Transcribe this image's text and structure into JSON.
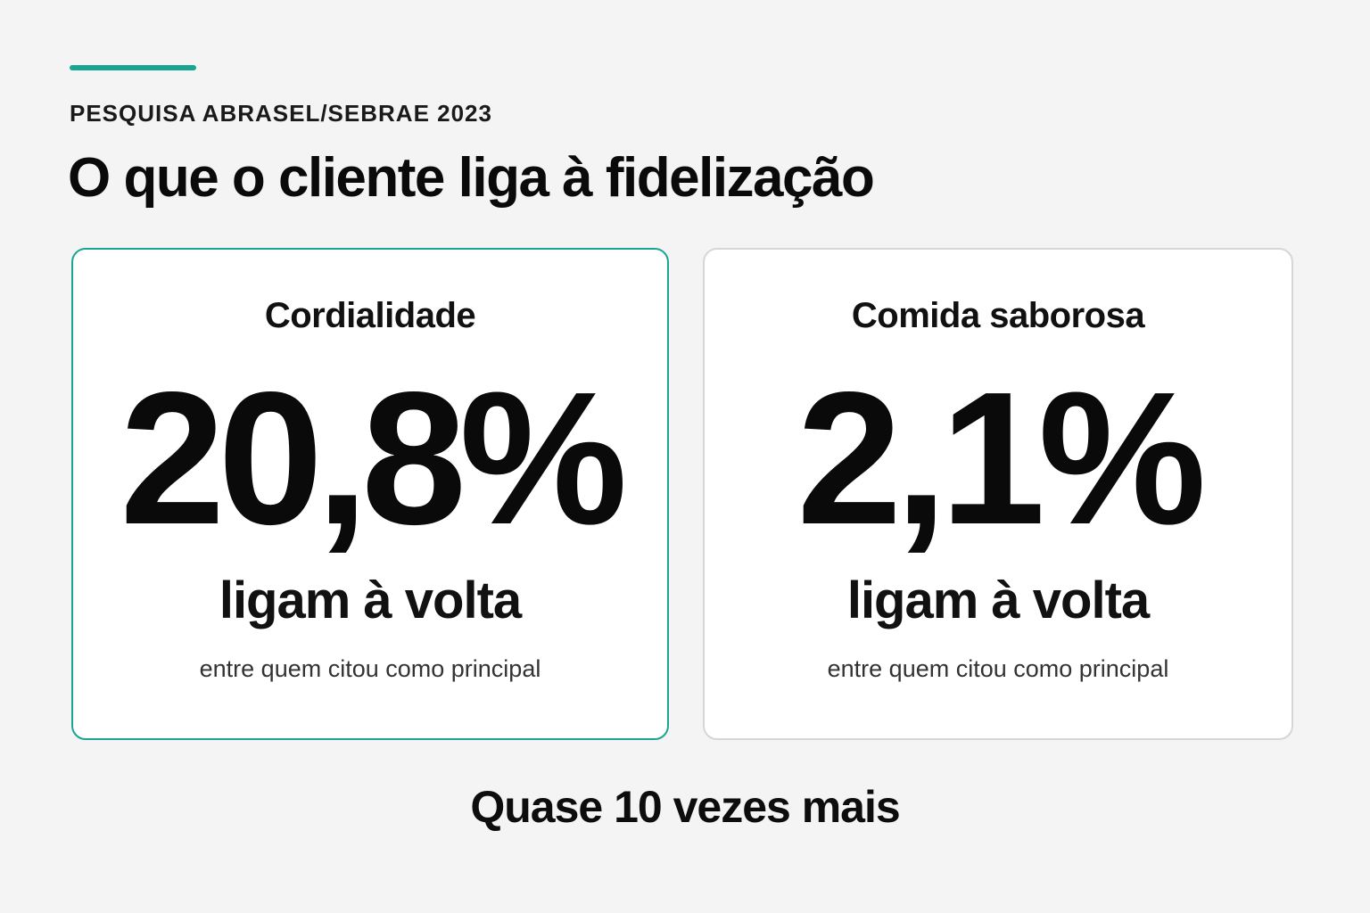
{
  "colors": {
    "accent": "#1aa593",
    "highlight_border": "#1aa593",
    "card_border": "#d6d6d6"
  },
  "header": {
    "eyebrow": "PESQUISA ABRASEL/SEBRAE 2023",
    "title": "O que o cliente liga à fidelização"
  },
  "cards": [
    {
      "label": "Cordialidade",
      "value": "20,8%",
      "subtitle": "ligam à volta",
      "note": "entre quem citou como principal",
      "highlighted": true
    },
    {
      "label": "Comida saborosa",
      "value": "2,1%",
      "subtitle": "ligam à volta",
      "note": "entre quem citou como principal",
      "highlighted": false
    }
  ],
  "footer": {
    "text": "Quase 10 vezes mais"
  }
}
